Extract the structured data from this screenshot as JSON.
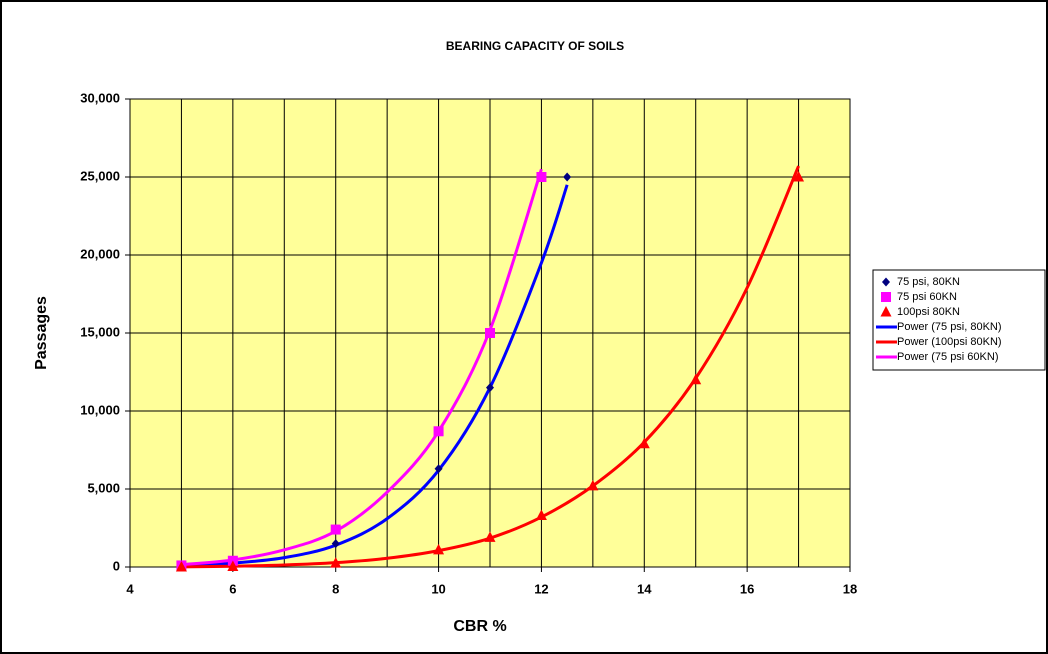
{
  "chart_data": {
    "type": "scatter",
    "title": "BEARING CAPACITY OF SOILS",
    "x_label": "CBR %",
    "y_label": "Passages",
    "xlim": [
      4,
      18
    ],
    "xticks": [
      4,
      6,
      8,
      10,
      12,
      14,
      16,
      18
    ],
    "x_minor_ticks": [
      5,
      7,
      9,
      11,
      13,
      15,
      17
    ],
    "ylim": [
      0,
      30000
    ],
    "yticks": [
      0,
      {
        "value": 5000,
        "label": "5,000"
      },
      {
        "value": 10000,
        "label": "10,000"
      },
      {
        "value": 15000,
        "label": "15,000"
      },
      {
        "value": 20000,
        "label": "20,000"
      },
      {
        "value": 25000,
        "label": "25,000"
      },
      {
        "value": 30000,
        "label": "30,000"
      }
    ],
    "grid": true,
    "plot_background": "#ffff99",
    "legend": "right",
    "series": [
      {
        "name": "75 psi, 80KN",
        "color": "#000080",
        "marker": "diamond",
        "x": [
          5,
          6,
          8,
          10,
          11,
          12.5
        ],
        "values": [
          100,
          300,
          1500,
          6300,
          11500,
          25000
        ]
      },
      {
        "name": "75 psi 60KN",
        "color": "#ff00ff",
        "marker": "square",
        "x": [
          5,
          6,
          8,
          10,
          11,
          12
        ],
        "values": [
          100,
          400,
          2400,
          8700,
          15000,
          25000
        ]
      },
      {
        "name": "100psi 80KN",
        "color": "#ff0000",
        "marker": "triangle",
        "x": [
          5,
          6,
          8,
          10,
          11,
          12,
          13,
          14,
          15,
          17
        ],
        "values": [
          0,
          30,
          250,
          1100,
          1900,
          3300,
          5200,
          7900,
          12000,
          25000
        ]
      }
    ],
    "trendlines": [
      {
        "name": "Power (75 psi, 80KN)",
        "color": "#0000ff",
        "x": [
          5,
          6,
          7,
          8,
          9,
          10,
          11,
          12,
          12.5
        ],
        "values": [
          100,
          250,
          600,
          1400,
          3100,
          6200,
          11500,
          19500,
          24500
        ]
      },
      {
        "name": "Power (100psi 80KN)",
        "color": "#ff0000",
        "x": [
          5,
          6,
          7,
          8,
          9,
          10,
          11,
          12,
          13,
          14,
          15,
          16,
          17
        ],
        "values": [
          10,
          50,
          130,
          280,
          560,
          1050,
          1850,
          3200,
          5200,
          8000,
          12100,
          17900,
          25700
        ]
      },
      {
        "name": "Power (75 psi 60KN)",
        "color": "#ff00ff",
        "x": [
          5,
          6,
          7,
          8,
          9,
          10,
          11,
          12
        ],
        "values": [
          150,
          450,
          1100,
          2300,
          4800,
          8700,
          15200,
          25500
        ]
      }
    ]
  }
}
